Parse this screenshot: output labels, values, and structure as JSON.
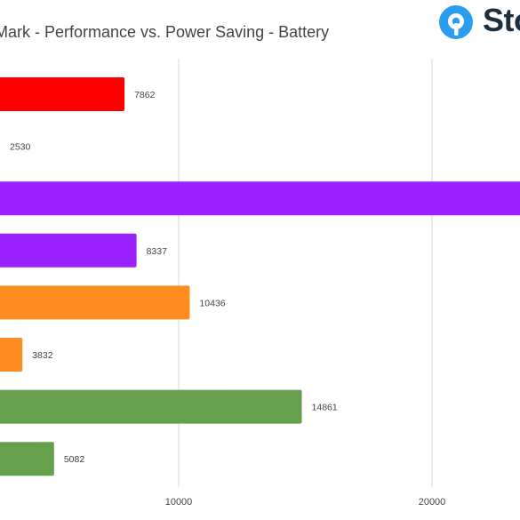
{
  "chart_data": {
    "type": "bar",
    "orientation": "horizontal",
    "title": "Mark - Performance vs. Power Saving - Battery",
    "xlim": [
      3000,
      25000
    ],
    "x_ticks": [
      10000,
      20000
    ],
    "x_tick_labels": [
      "10000",
      "20000"
    ],
    "grid": true,
    "bars": [
      {
        "value": 7862,
        "label": "7862",
        "color": "#ff0000"
      },
      {
        "value": 2530,
        "label": "2530",
        "color": "#9900ff"
      },
      {
        "value": 25000,
        "label": "",
        "color": "#9b22ff"
      },
      {
        "value": 8337,
        "label": "8337",
        "color": "#9b22ff"
      },
      {
        "value": 10436,
        "label": "10436",
        "color": "#ff8c1f"
      },
      {
        "value": 3832,
        "label": "3832",
        "color": "#ff8c1f"
      },
      {
        "value": 14861,
        "label": "14861",
        "color": "#67a04d"
      },
      {
        "value": 5082,
        "label": "5082",
        "color": "#67a04d"
      }
    ]
  },
  "brand": {
    "logo_icon": "brand-logo-icon",
    "name": "Sto",
    "logo_color": "#2b9cf0",
    "text_color": "#1d2e3f"
  },
  "colors": {
    "grid": "#d9d9d9",
    "text": "#444444"
  }
}
